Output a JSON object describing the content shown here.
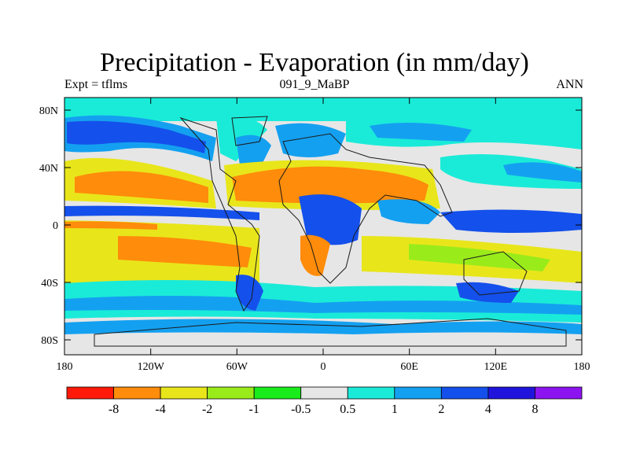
{
  "title": "Precipitation - Evaporation (in mm/day)",
  "subtitle_left": "Expt = tflms",
  "subtitle_center": "091_9_MaBP",
  "subtitle_right": "ANN",
  "lat_ticks": [
    "80N",
    "40N",
    "0",
    "40S",
    "80S"
  ],
  "lon_ticks": [
    "180",
    "120W",
    "60W",
    "0",
    "60E",
    "120E",
    "180"
  ],
  "colorbar": {
    "colors": [
      "#ff1a0a",
      "#ff8c0a",
      "#e8e61a",
      "#9aeb1a",
      "#1aeb1a",
      "#e6e6e6",
      "#1aebd8",
      "#14a0f0",
      "#1450eb",
      "#2014dc",
      "#8c14f0"
    ],
    "labels": [
      "-8",
      "-4",
      "-2",
      "-1",
      "-0.5",
      "0.5",
      "1",
      "2",
      "4",
      "8"
    ]
  },
  "colors": {
    "land_outline": "#1a1a1a",
    "frame": "#000000"
  }
}
